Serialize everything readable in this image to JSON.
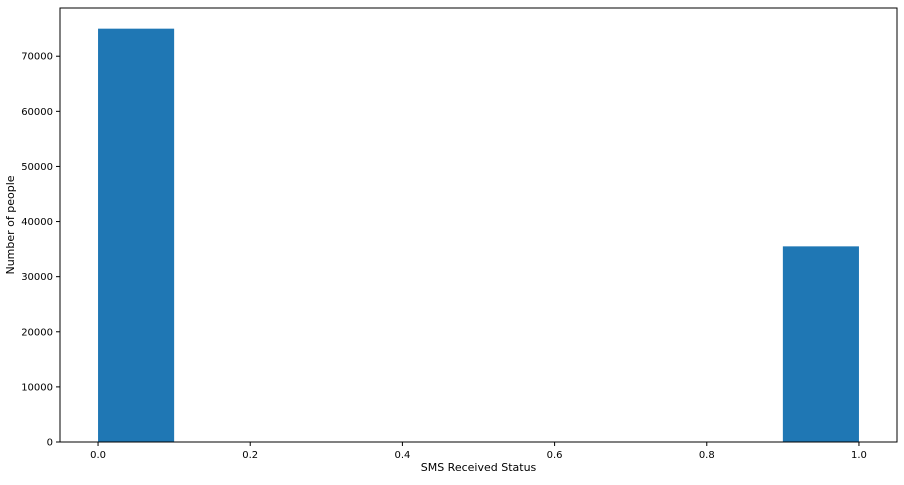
{
  "chart_data": {
    "type": "histogram",
    "xlabel": "SMS Received Status",
    "ylabel": "Number of people",
    "xlim": [
      -0.05,
      1.05
    ],
    "ylim": [
      0,
      78750
    ],
    "x_ticks": [
      0.0,
      0.2,
      0.4,
      0.6,
      0.8,
      1.0
    ],
    "x_tick_labels": [
      "0.0",
      "0.2",
      "0.4",
      "0.6",
      "0.8",
      "1.0"
    ],
    "y_ticks": [
      0,
      10000,
      20000,
      30000,
      40000,
      50000,
      60000,
      70000
    ],
    "y_tick_labels": [
      "0",
      "10000",
      "20000",
      "30000",
      "40000",
      "50000",
      "60000",
      "70000"
    ],
    "bins": [
      {
        "x0": 0.0,
        "x1": 0.1,
        "count": 75000
      },
      {
        "x0": 0.1,
        "x1": 0.2,
        "count": 0
      },
      {
        "x0": 0.2,
        "x1": 0.3,
        "count": 0
      },
      {
        "x0": 0.3,
        "x1": 0.4,
        "count": 0
      },
      {
        "x0": 0.4,
        "x1": 0.5,
        "count": 0
      },
      {
        "x0": 0.5,
        "x1": 0.6,
        "count": 0
      },
      {
        "x0": 0.6,
        "x1": 0.7,
        "count": 0
      },
      {
        "x0": 0.7,
        "x1": 0.8,
        "count": 0
      },
      {
        "x0": 0.8,
        "x1": 0.9,
        "count": 0
      },
      {
        "x0": 0.9,
        "x1": 1.0,
        "count": 35500
      }
    ],
    "bar_color": "#1f77b4",
    "grid": false,
    "legend": "none"
  }
}
